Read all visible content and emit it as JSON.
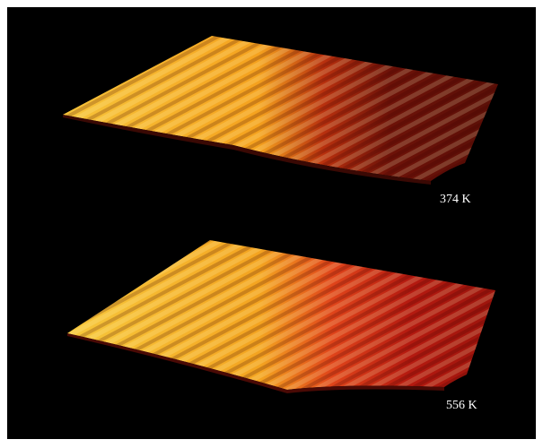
{
  "panels": [
    {
      "label": "374 K"
    },
    {
      "label": "556 K"
    }
  ]
}
